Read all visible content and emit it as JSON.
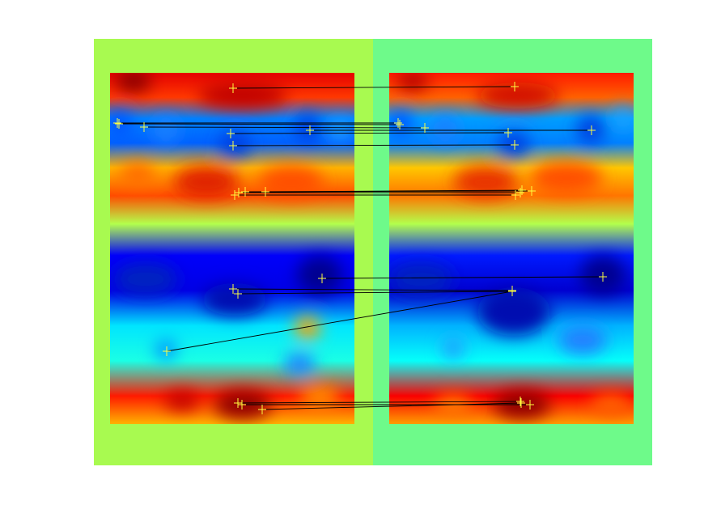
{
  "colors": {
    "figure_background": "#ffffff",
    "left_panel_background": "#a8fa50",
    "right_panel_background": "#6efa8a",
    "match_line": "#000000",
    "keypoint_marker": "#ffff40",
    "colormap": "jet"
  },
  "images": {
    "left": {
      "colormap": "jet",
      "bands": [
        {
          "y": 0.0,
          "v": 0.9
        },
        {
          "y": 0.07,
          "v": 0.82
        },
        {
          "y": 0.13,
          "v": 0.25
        },
        {
          "y": 0.2,
          "v": 0.22
        },
        {
          "y": 0.27,
          "v": 0.7
        },
        {
          "y": 0.35,
          "v": 0.8
        },
        {
          "y": 0.43,
          "v": 0.55
        },
        {
          "y": 0.52,
          "v": 0.12
        },
        {
          "y": 0.62,
          "v": 0.1
        },
        {
          "y": 0.72,
          "v": 0.35
        },
        {
          "y": 0.82,
          "v": 0.4
        },
        {
          "y": 0.92,
          "v": 0.85
        },
        {
          "y": 1.0,
          "v": 0.7
        }
      ]
    },
    "right": {
      "colormap": "jet",
      "bands": [
        {
          "y": 0.0,
          "v": 0.85
        },
        {
          "y": 0.07,
          "v": 0.78
        },
        {
          "y": 0.13,
          "v": 0.28
        },
        {
          "y": 0.2,
          "v": 0.25
        },
        {
          "y": 0.27,
          "v": 0.68
        },
        {
          "y": 0.35,
          "v": 0.76
        },
        {
          "y": 0.43,
          "v": 0.55
        },
        {
          "y": 0.52,
          "v": 0.15
        },
        {
          "y": 0.62,
          "v": 0.08
        },
        {
          "y": 0.72,
          "v": 0.3
        },
        {
          "y": 0.82,
          "v": 0.38
        },
        {
          "y": 0.92,
          "v": 0.88
        },
        {
          "y": 1.0,
          "v": 0.72
        }
      ]
    }
  },
  "matches_count": 15
}
